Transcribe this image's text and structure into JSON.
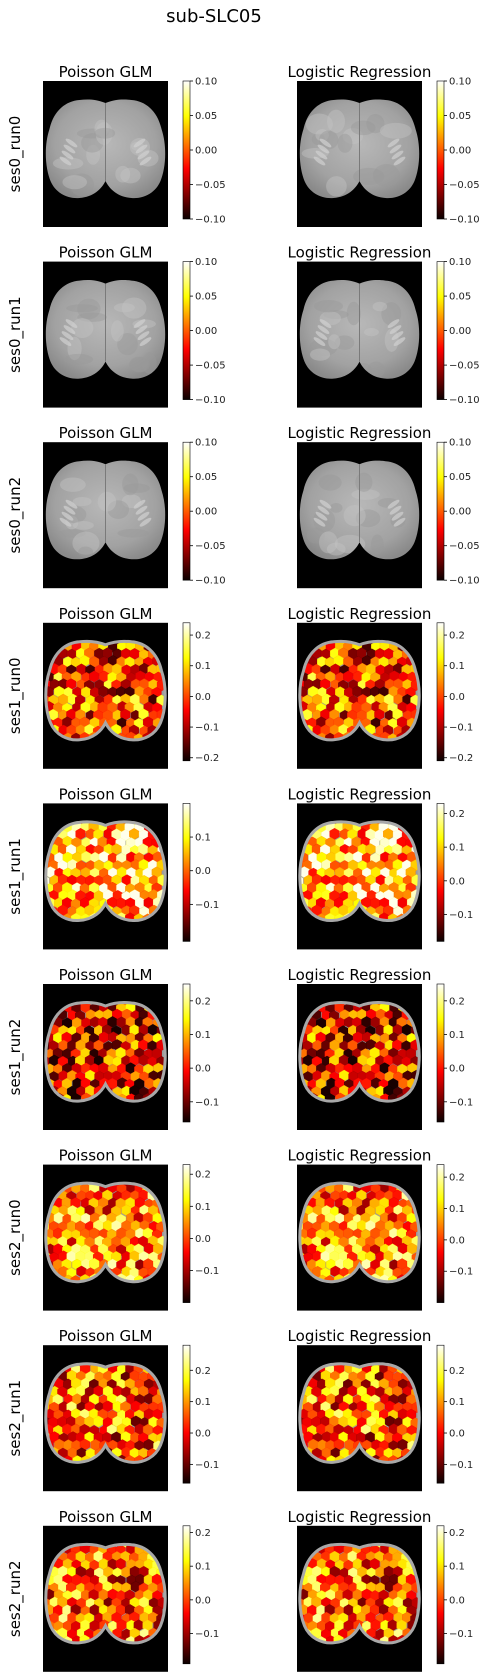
{
  "figure": {
    "title": "sub-SLC05"
  },
  "chart_data": [
    {
      "type": "heatmap",
      "title": "Poisson GLM",
      "row_label": "ses0_run0",
      "map": "gray_atlas",
      "colorbar": {
        "colormap": "hot",
        "ticks": [
          0.1,
          0.05,
          0.0,
          -0.05,
          -0.1
        ],
        "tick_labels": [
          "0.10",
          "0.05",
          "0.00",
          "−0.05",
          "−0.10"
        ],
        "range": [
          -0.1,
          0.1
        ]
      }
    },
    {
      "type": "heatmap",
      "title": "Logistic Regression",
      "row_label": "ses0_run0",
      "map": "gray_atlas",
      "colorbar": {
        "colormap": "hot",
        "ticks": [
          0.1,
          0.05,
          0.0,
          -0.05,
          -0.1
        ],
        "tick_labels": [
          "0.10",
          "0.05",
          "0.00",
          "−0.05",
          "−0.10"
        ],
        "range": [
          -0.1,
          0.1
        ]
      }
    },
    {
      "type": "heatmap",
      "title": "Poisson GLM",
      "row_label": "ses0_run1",
      "map": "gray_atlas",
      "colorbar": {
        "colormap": "hot",
        "ticks": [
          0.1,
          0.05,
          0.0,
          -0.05,
          -0.1
        ],
        "tick_labels": [
          "0.10",
          "0.05",
          "0.00",
          "−0.05",
          "−0.10"
        ],
        "range": [
          -0.1,
          0.1
        ]
      }
    },
    {
      "type": "heatmap",
      "title": "Logistic Regression",
      "row_label": "ses0_run1",
      "map": "gray_atlas",
      "colorbar": {
        "colormap": "hot",
        "ticks": [
          0.1,
          0.05,
          0.0,
          -0.05,
          -0.1
        ],
        "tick_labels": [
          "0.10",
          "0.05",
          "0.00",
          "−0.05",
          "−0.10"
        ],
        "range": [
          -0.1,
          0.1
        ]
      }
    },
    {
      "type": "heatmap",
      "title": "Poisson GLM",
      "row_label": "ses0_run2",
      "map": "gray_atlas",
      "colorbar": {
        "colormap": "hot",
        "ticks": [
          0.1,
          0.05,
          0.0,
          -0.05,
          -0.1
        ],
        "tick_labels": [
          "0.10",
          "0.05",
          "0.00",
          "−0.05",
          "−0.10"
        ],
        "range": [
          -0.1,
          0.1
        ]
      }
    },
    {
      "type": "heatmap",
      "title": "Logistic Regression",
      "row_label": "ses0_run2",
      "map": "gray_atlas",
      "colorbar": {
        "colormap": "hot",
        "ticks": [
          0.1,
          0.05,
          0.0,
          -0.05,
          -0.1
        ],
        "tick_labels": [
          "0.10",
          "0.05",
          "0.00",
          "−0.05",
          "−0.10"
        ],
        "range": [
          -0.1,
          0.1
        ]
      }
    },
    {
      "type": "heatmap",
      "title": "Poisson GLM",
      "row_label": "ses1_run0",
      "map": "parcel_values",
      "colorbar": {
        "colormap": "hot",
        "ticks": [
          0.2,
          0.1,
          0.0,
          -0.1,
          -0.2
        ],
        "tick_labels": [
          "0.2",
          "0.1",
          "0.0",
          "−0.1",
          "−0.2"
        ],
        "range": [
          -0.21,
          0.24
        ]
      }
    },
    {
      "type": "heatmap",
      "title": "Logistic Regression",
      "row_label": "ses1_run0",
      "map": "parcel_values",
      "colorbar": {
        "colormap": "hot",
        "ticks": [
          0.2,
          0.1,
          0.0,
          -0.1,
          -0.2
        ],
        "tick_labels": [
          "0.2",
          "0.1",
          "0.0",
          "−0.1",
          "−0.2"
        ],
        "range": [
          -0.21,
          0.24
        ]
      }
    },
    {
      "type": "heatmap",
      "title": "Poisson GLM",
      "row_label": "ses1_run1",
      "map": "parcel_values",
      "colorbar": {
        "colormap": "hot",
        "ticks": [
          0.1,
          0.0,
          -0.1
        ],
        "tick_labels": [
          "0.1",
          "0.0",
          "−0.1"
        ],
        "range": [
          -0.21,
          0.2
        ]
      }
    },
    {
      "type": "heatmap",
      "title": "Logistic Regression",
      "row_label": "ses1_run1",
      "map": "parcel_values",
      "colorbar": {
        "colormap": "hot",
        "ticks": [
          0.2,
          0.1,
          0.0,
          -0.1
        ],
        "tick_labels": [
          "0.2",
          "0.1",
          "0.0",
          "−0.1"
        ],
        "range": [
          -0.18,
          0.23
        ]
      }
    },
    {
      "type": "heatmap",
      "title": "Poisson GLM",
      "row_label": "ses1_run2",
      "map": "parcel_values",
      "colorbar": {
        "colormap": "hot",
        "ticks": [
          0.2,
          0.1,
          0.0,
          -0.1
        ],
        "tick_labels": [
          "0.2",
          "0.1",
          "0.0",
          "−0.1"
        ],
        "range": [
          -0.16,
          0.25
        ]
      }
    },
    {
      "type": "heatmap",
      "title": "Logistic Regression",
      "row_label": "ses1_run2",
      "map": "parcel_values",
      "colorbar": {
        "colormap": "hot",
        "ticks": [
          0.2,
          0.1,
          0.0,
          -0.1
        ],
        "tick_labels": [
          "0.2",
          "0.1",
          "0.0",
          "−0.1"
        ],
        "range": [
          -0.16,
          0.25
        ]
      }
    },
    {
      "type": "heatmap",
      "title": "Poisson GLM",
      "row_label": "ses2_run0",
      "map": "parcel_values",
      "colorbar": {
        "colormap": "hot",
        "ticks": [
          0.2,
          0.1,
          0.0,
          -0.1
        ],
        "tick_labels": [
          "0.2",
          "0.1",
          "0.0",
          "−0.1"
        ],
        "range": [
          -0.2,
          0.23
        ]
      }
    },
    {
      "type": "heatmap",
      "title": "Logistic Regression",
      "row_label": "ses2_run0",
      "map": "parcel_values",
      "colorbar": {
        "colormap": "hot",
        "ticks": [
          0.2,
          0.1,
          0.0,
          -0.1
        ],
        "tick_labels": [
          "0.2",
          "0.1",
          "0.0",
          "−0.1"
        ],
        "range": [
          -0.2,
          0.24
        ]
      }
    },
    {
      "type": "heatmap",
      "title": "Poisson GLM",
      "row_label": "ses2_run1",
      "map": "parcel_values",
      "colorbar": {
        "colormap": "hot",
        "ticks": [
          0.2,
          0.1,
          0.0,
          -0.1
        ],
        "tick_labels": [
          "0.2",
          "0.1",
          "0.0",
          "−0.1"
        ],
        "range": [
          -0.16,
          0.28
        ]
      }
    },
    {
      "type": "heatmap",
      "title": "Logistic Regression",
      "row_label": "ses2_run1",
      "map": "parcel_values",
      "colorbar": {
        "colormap": "hot",
        "ticks": [
          0.2,
          0.1,
          0.0,
          -0.1
        ],
        "tick_labels": [
          "0.2",
          "0.1",
          "0.0",
          "−0.1"
        ],
        "range": [
          -0.16,
          0.28
        ]
      }
    },
    {
      "type": "heatmap",
      "title": "Poisson GLM",
      "row_label": "ses2_run2",
      "map": "parcel_values",
      "colorbar": {
        "colormap": "hot",
        "ticks": [
          0.2,
          0.1,
          0.0,
          -0.1
        ],
        "tick_labels": [
          "0.2",
          "0.1",
          "0.0",
          "−0.1"
        ],
        "range": [
          -0.19,
          0.22
        ]
      }
    },
    {
      "type": "heatmap",
      "title": "Logistic Regression",
      "row_label": "ses2_run2",
      "map": "parcel_values",
      "colorbar": {
        "colormap": "hot",
        "ticks": [
          0.2,
          0.1,
          0.0,
          -0.1
        ],
        "tick_labels": [
          "0.2",
          "0.1",
          "0.0",
          "−0.1"
        ],
        "range": [
          -0.19,
          0.22
        ]
      }
    }
  ]
}
